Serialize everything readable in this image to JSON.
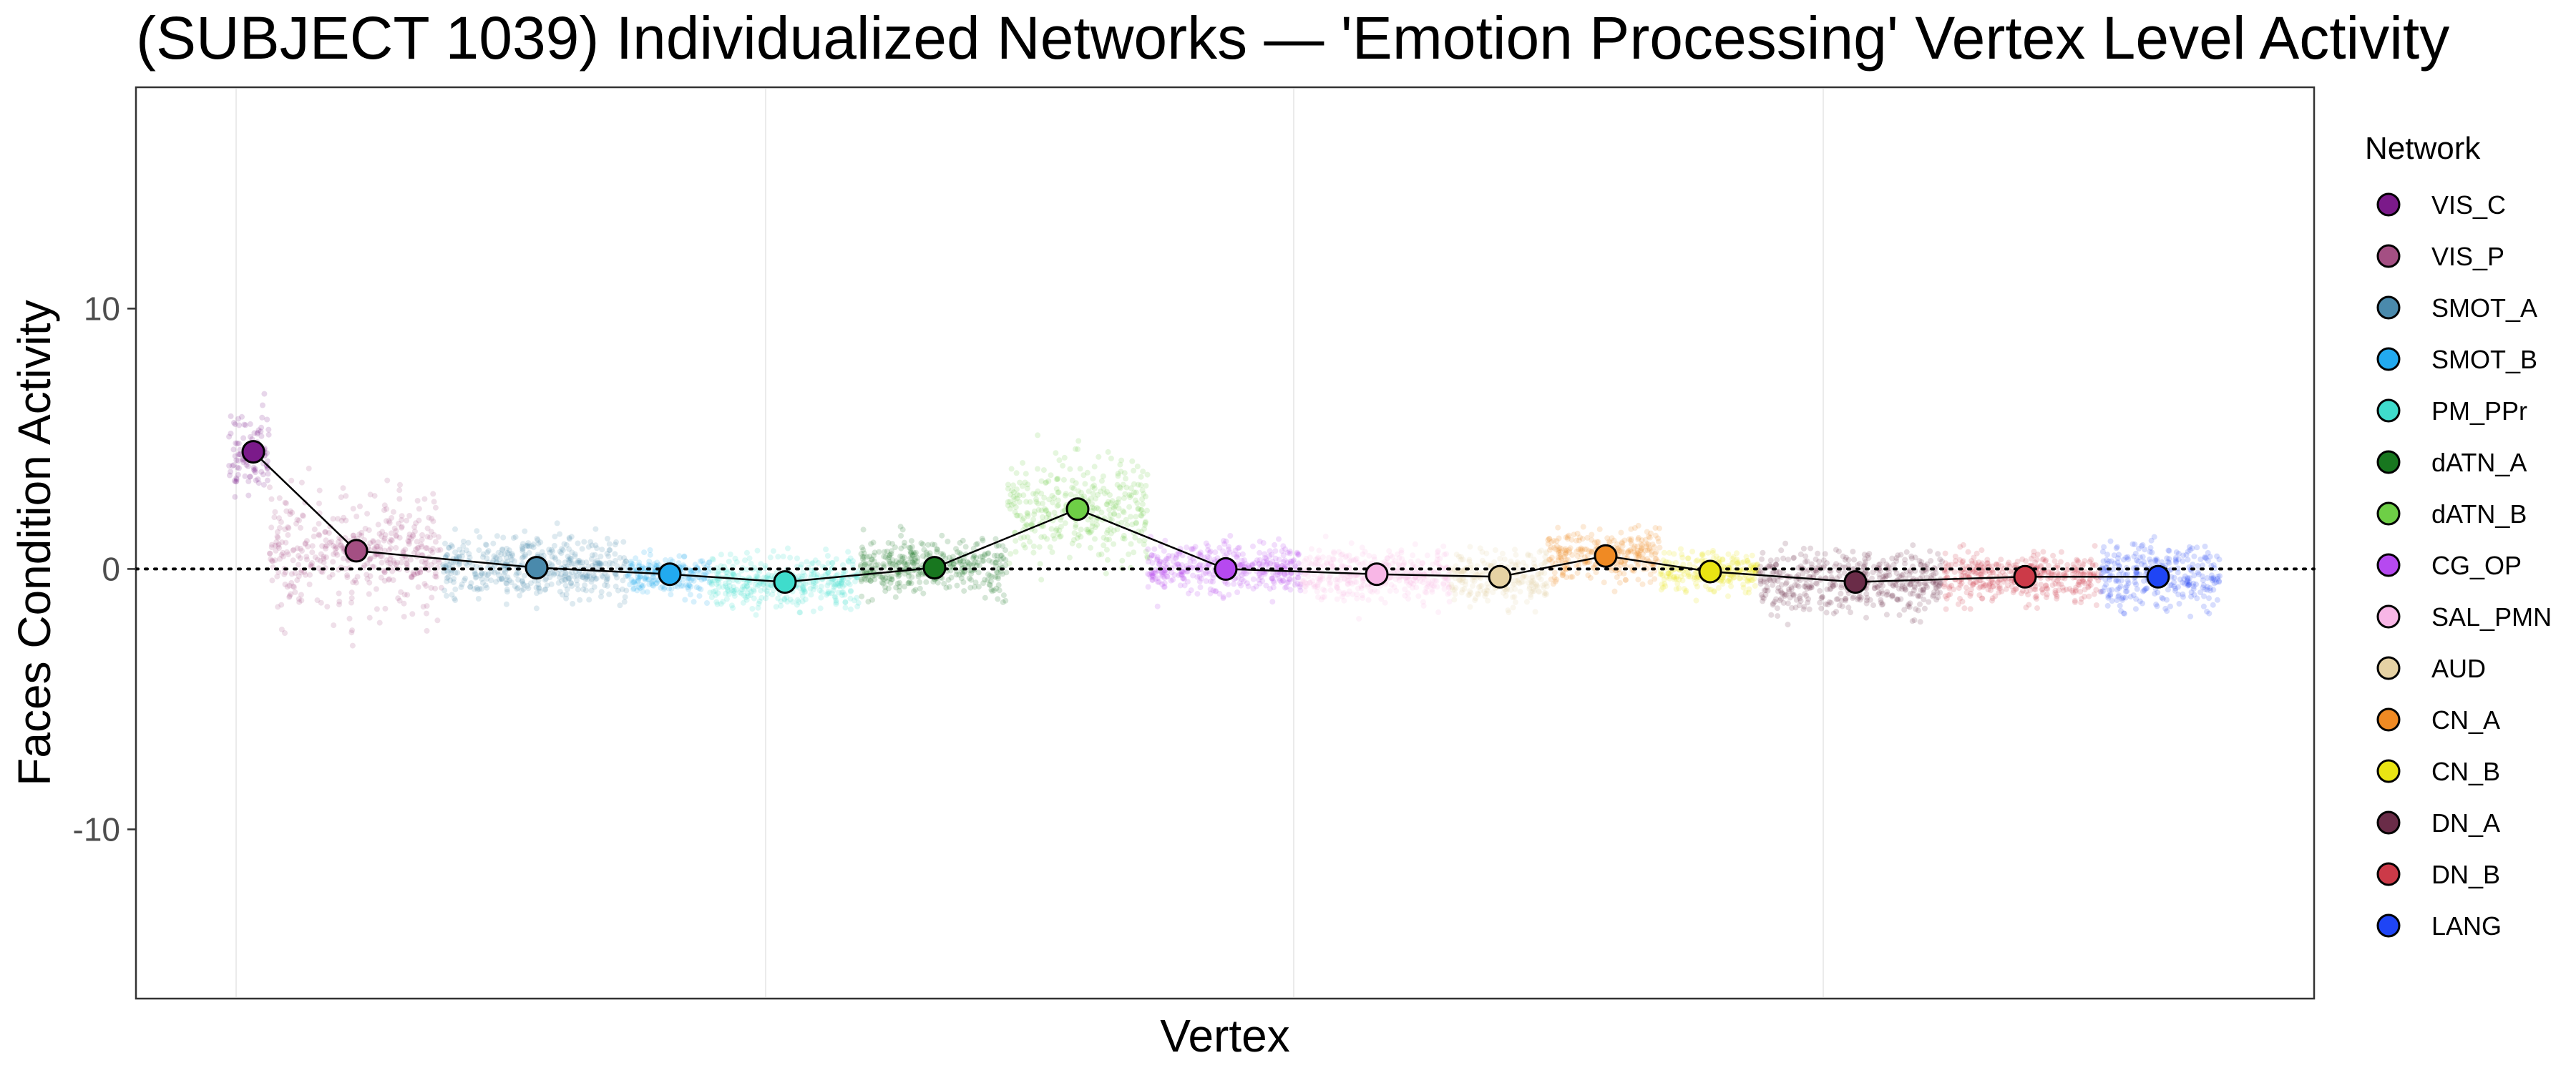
{
  "chart_data": {
    "type": "scatter",
    "title": "(SUBJECT 1039) Individualized Networks — 'Emotion Processing' Vertex Level Activity",
    "xlabel": "Vertex",
    "ylabel": "Faces Condition Activity",
    "ylim": [
      -16.5,
      18.5
    ],
    "yticks": [
      -10,
      0,
      10
    ],
    "ytick_labels": [
      "-10",
      "0",
      "10"
    ],
    "reference_line_y": 0,
    "grid": true,
    "legend": {
      "title": "Network",
      "placement": "right"
    },
    "series": [
      {
        "name": "VIS_C",
        "color": "#7b1a8a",
        "mean": 4.5,
        "spread": 2.2
      },
      {
        "name": "VIS_P",
        "color": "#a44f83",
        "mean": 0.7,
        "spread": 2.8
      },
      {
        "name": "SMOT_A",
        "color": "#4a8aac",
        "mean": 0.05,
        "spread": 1.6
      },
      {
        "name": "SMOT_B",
        "color": "#22aaf0",
        "mean": -0.2,
        "spread": 1.0
      },
      {
        "name": "PM_PPr",
        "color": "#3fdccc",
        "mean": -0.5,
        "spread": 1.3
      },
      {
        "name": "dATN_A",
        "color": "#18771f",
        "mean": 0.05,
        "spread": 1.4
      },
      {
        "name": "dATN_B",
        "color": "#6ecf46",
        "mean": 2.3,
        "spread": 2.6
      },
      {
        "name": "CG_OP",
        "color": "#b649f0",
        "mean": 0.0,
        "spread": 1.2
      },
      {
        "name": "SAL_PMN",
        "color": "#f8b6e6",
        "mean": -0.2,
        "spread": 1.3
      },
      {
        "name": "AUD",
        "color": "#e6d2a4",
        "mean": -0.3,
        "spread": 1.3
      },
      {
        "name": "CN_A",
        "color": "#f08a23",
        "mean": 0.5,
        "spread": 1.3
      },
      {
        "name": "CN_B",
        "color": "#e9e413",
        "mean": -0.1,
        "spread": 1.0
      },
      {
        "name": "DN_A",
        "color": "#6a2c48",
        "mean": -0.5,
        "spread": 1.6
      },
      {
        "name": "DN_B",
        "color": "#cc3a48",
        "mean": -0.3,
        "spread": 1.2
      },
      {
        "name": "LANG",
        "color": "#1f45f5",
        "mean": -0.3,
        "spread": 1.6
      }
    ]
  }
}
